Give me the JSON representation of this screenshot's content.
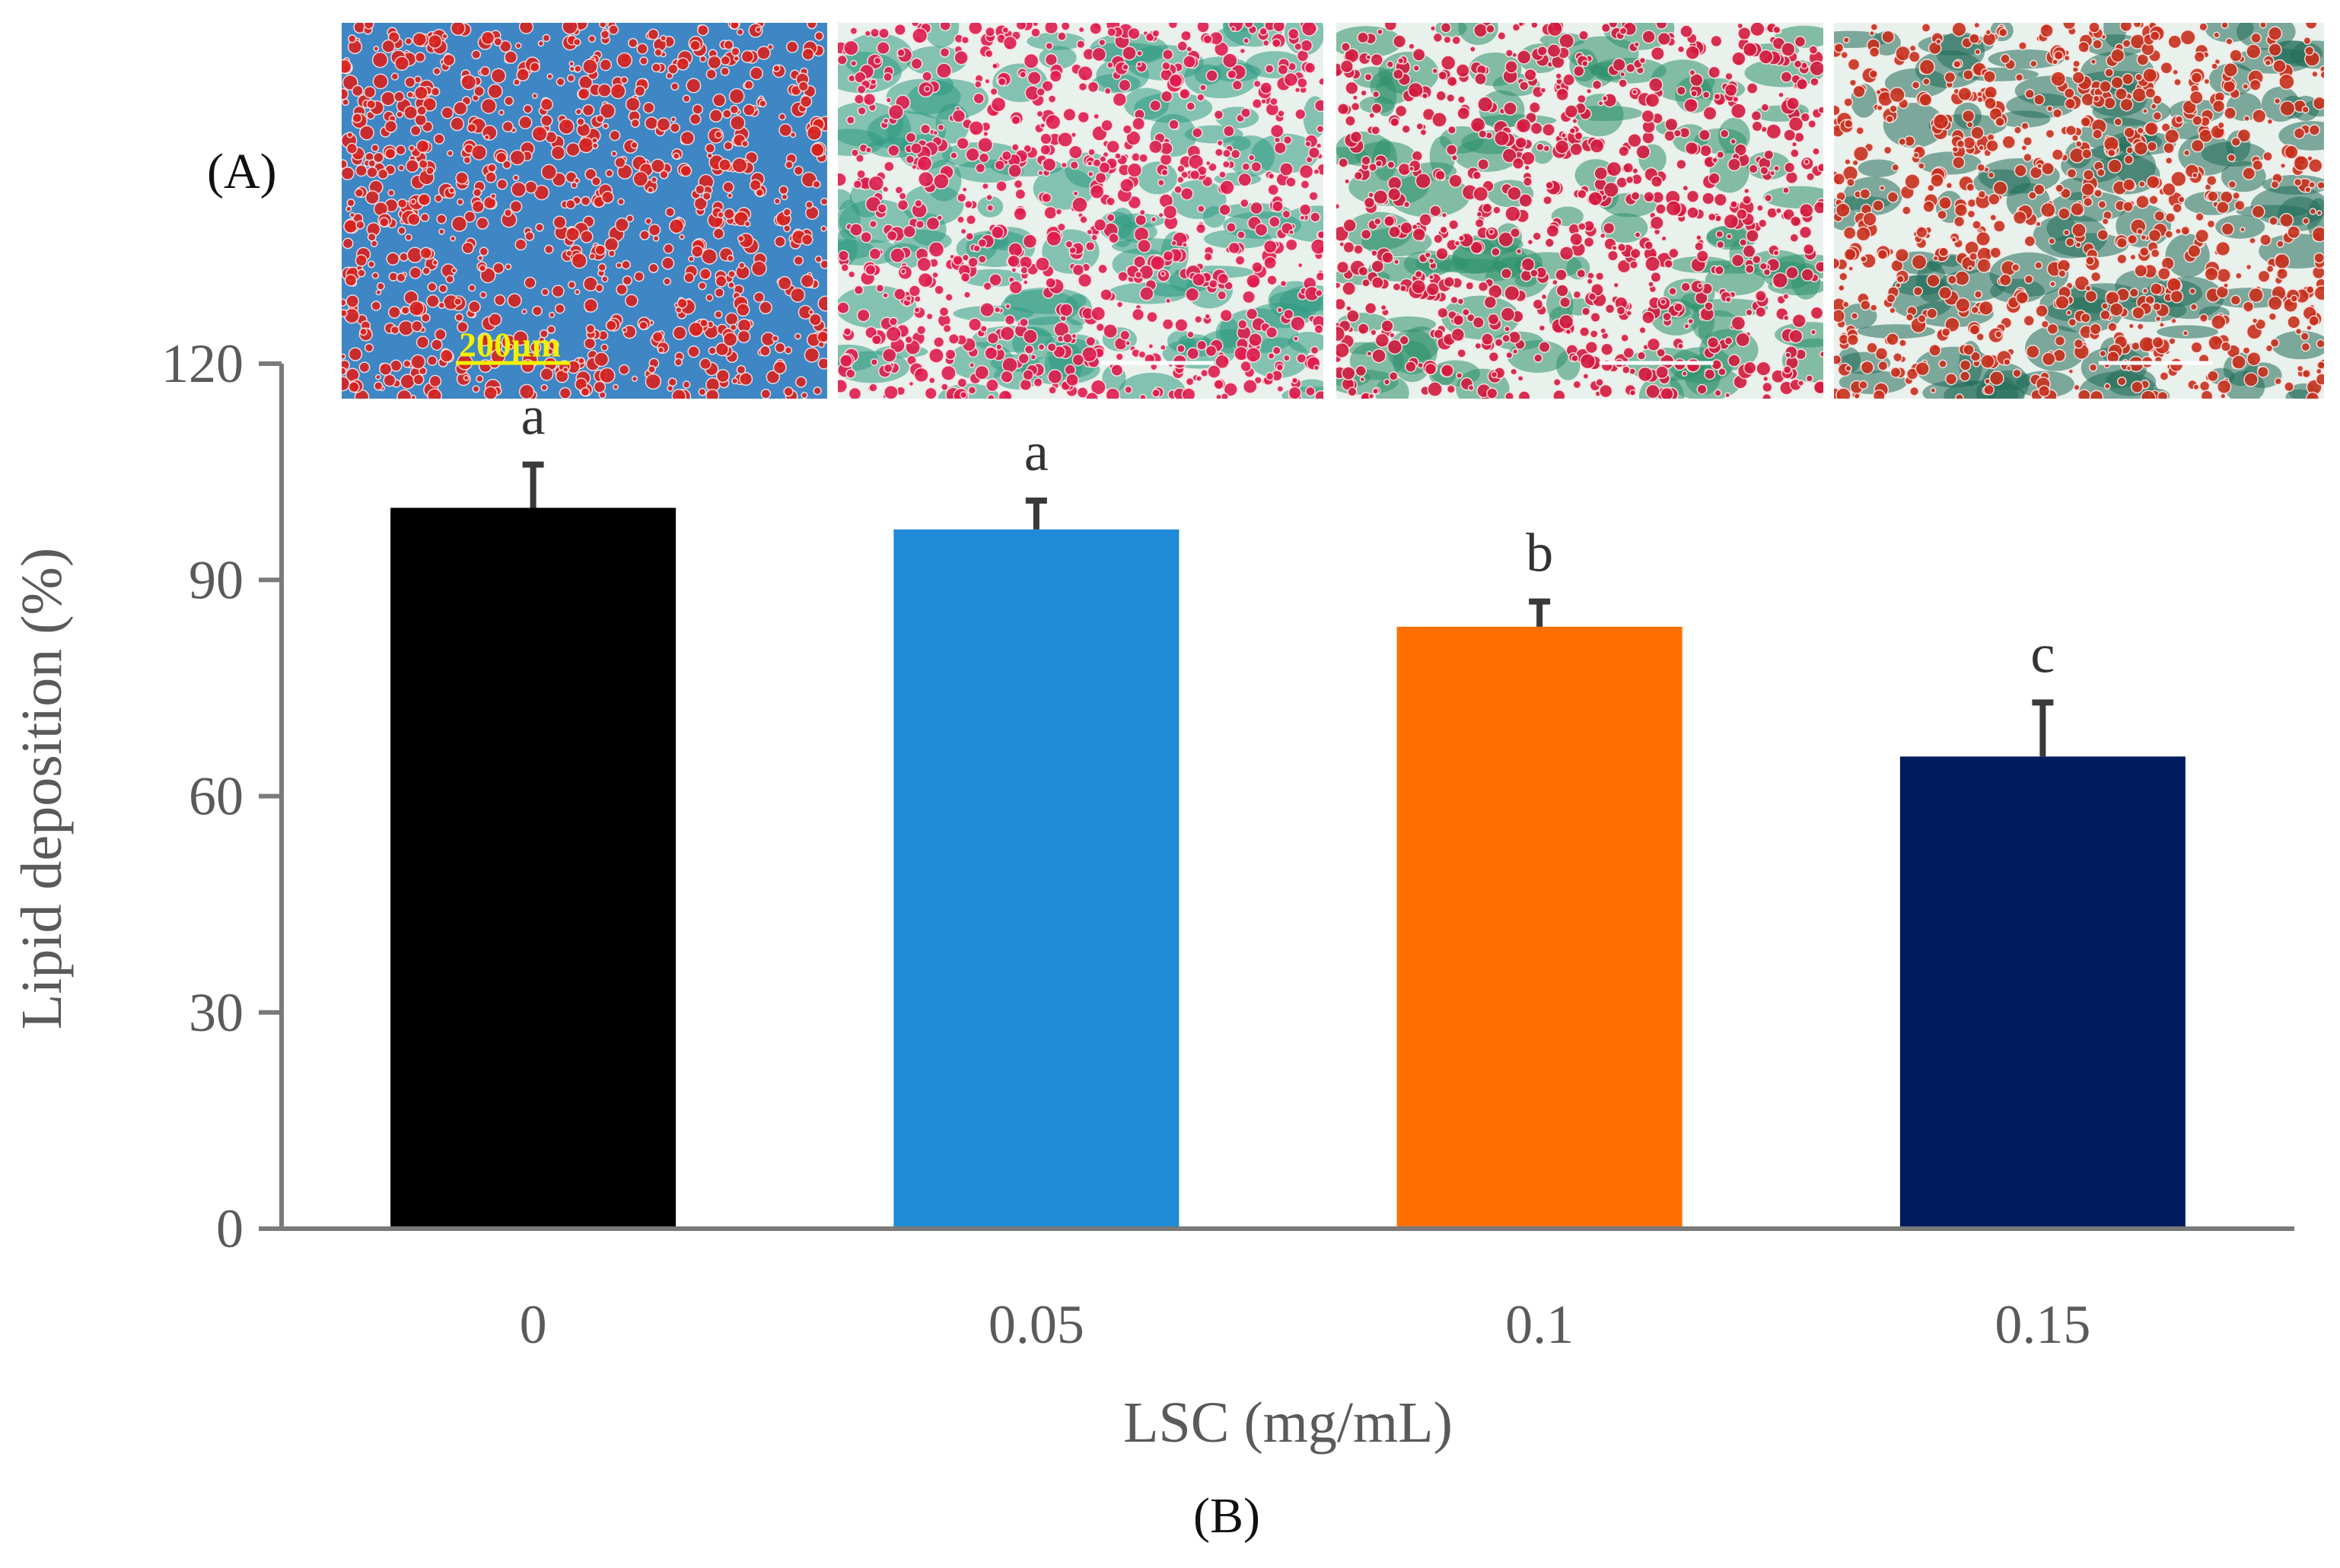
{
  "panel_labels": {
    "a": "(A)",
    "b": "(B)"
  },
  "micrographs": [
    {
      "lsc": "0",
      "scale_bar_text": "200µm",
      "stain_colors": [
        "#d9231f",
        "#3f86c4"
      ]
    },
    {
      "lsc": "0.05",
      "scale_bar_text": "",
      "stain_colors": [
        "#e01c4e",
        "#2f9a82"
      ]
    },
    {
      "lsc": "0.1",
      "scale_bar_text": "",
      "stain_colors": [
        "#d41a3f",
        "#2e8f6c"
      ]
    },
    {
      "lsc": "0.15",
      "scale_bar_text": "",
      "stain_colors": [
        "#c8301c",
        "#236b5a"
      ]
    }
  ],
  "chart_data": {
    "type": "bar",
    "categories": [
      "0",
      "0.05",
      "0.1",
      "0.15"
    ],
    "values": [
      100,
      97,
      83.5,
      65.5
    ],
    "errors": [
      6,
      4,
      3.5,
      7.5
    ],
    "significance": [
      "a",
      "a",
      "b",
      "c"
    ],
    "colors": [
      "#000000",
      "#1f8ad8",
      "#ff6f00",
      "#001b5e"
    ],
    "ylabel": "Lipid deposition (%)",
    "xlabel": "LSC (mg/mL)",
    "ylim": [
      0,
      120
    ],
    "yticks": [
      0,
      30,
      60,
      90,
      120
    ],
    "grid": false
  }
}
